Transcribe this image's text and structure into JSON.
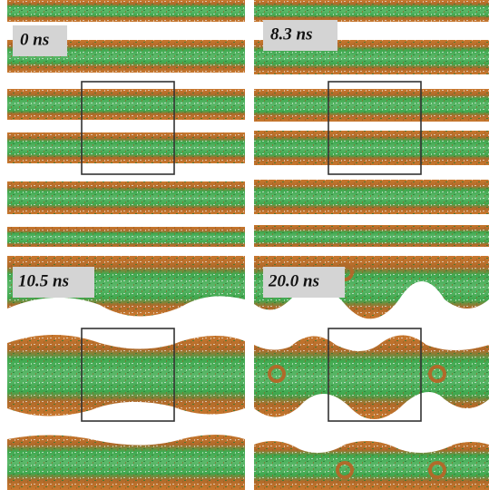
{
  "panels": [
    {
      "label": "0 ns"
    },
    {
      "label": "8.3 ns"
    },
    {
      "label": "10.5 ns"
    },
    {
      "label": "20.0 ns"
    }
  ]
}
